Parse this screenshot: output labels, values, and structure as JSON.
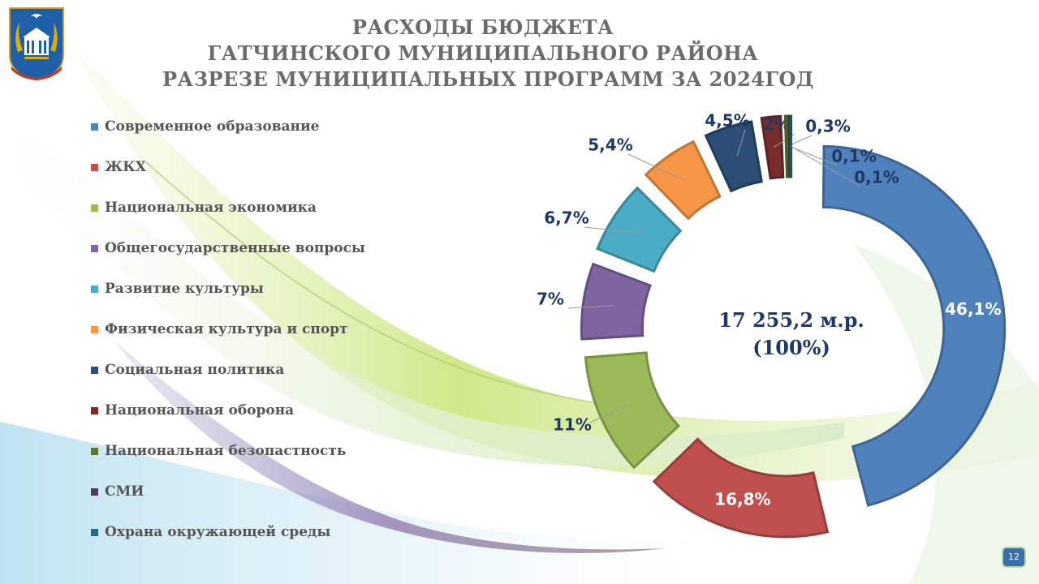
{
  "title_lines": [
    "РАСХОДЫ БЮДЖЕТА",
    "ГАТЧИНСКОГО МУНИЦИПАЛЬНОГО РАЙОНА",
    "РАЗРЕЗЕ МУНИЦИПАЛЬНЫХ ПРОГРАММ ЗА 2024ГОД"
  ],
  "page_number": "12",
  "chart_data": {
    "type": "pie",
    "variant": "donut-exploded",
    "center_value": "17 255,2 м.р.",
    "center_percent": "(100%)",
    "legend_position": "left",
    "slices": [
      {
        "label": "Современное образование",
        "value": 46.1,
        "display": "46,1%",
        "color": "#4f81bd"
      },
      {
        "label": "ЖКХ",
        "value": 16.8,
        "display": "16,8%",
        "color": "#c0504d"
      },
      {
        "label": "Национальная экономика",
        "value": 11,
        "display": "11%",
        "color": "#9bbb59"
      },
      {
        "label": "Общегосударственные вопросы",
        "value": 7,
        "display": "7%",
        "color": "#8064a2"
      },
      {
        "label": "Развитие культуры",
        "value": 6.7,
        "display": "6,7%",
        "color": "#4bacc6"
      },
      {
        "label": "Физическая культура и спорт",
        "value": 5.4,
        "display": "5,4%",
        "color": "#f79646"
      },
      {
        "label": "Социальная политика",
        "value": 4.5,
        "display": "4,5%",
        "color": "#2c4d75"
      },
      {
        "label": "Национальная оборона",
        "value": 2,
        "display": "2%",
        "color": "#772c2a"
      },
      {
        "label": "Национальная безопастность",
        "value": 0.3,
        "display": "0,3%",
        "color": "#5f7530"
      },
      {
        "label": "СМИ",
        "value": 0.1,
        "display": "0,1%",
        "color": "#4d3b62"
      },
      {
        "label": "Охрана окружающей среды",
        "value": 0.1,
        "display": "0,1%",
        "color": "#276a7c"
      }
    ]
  }
}
